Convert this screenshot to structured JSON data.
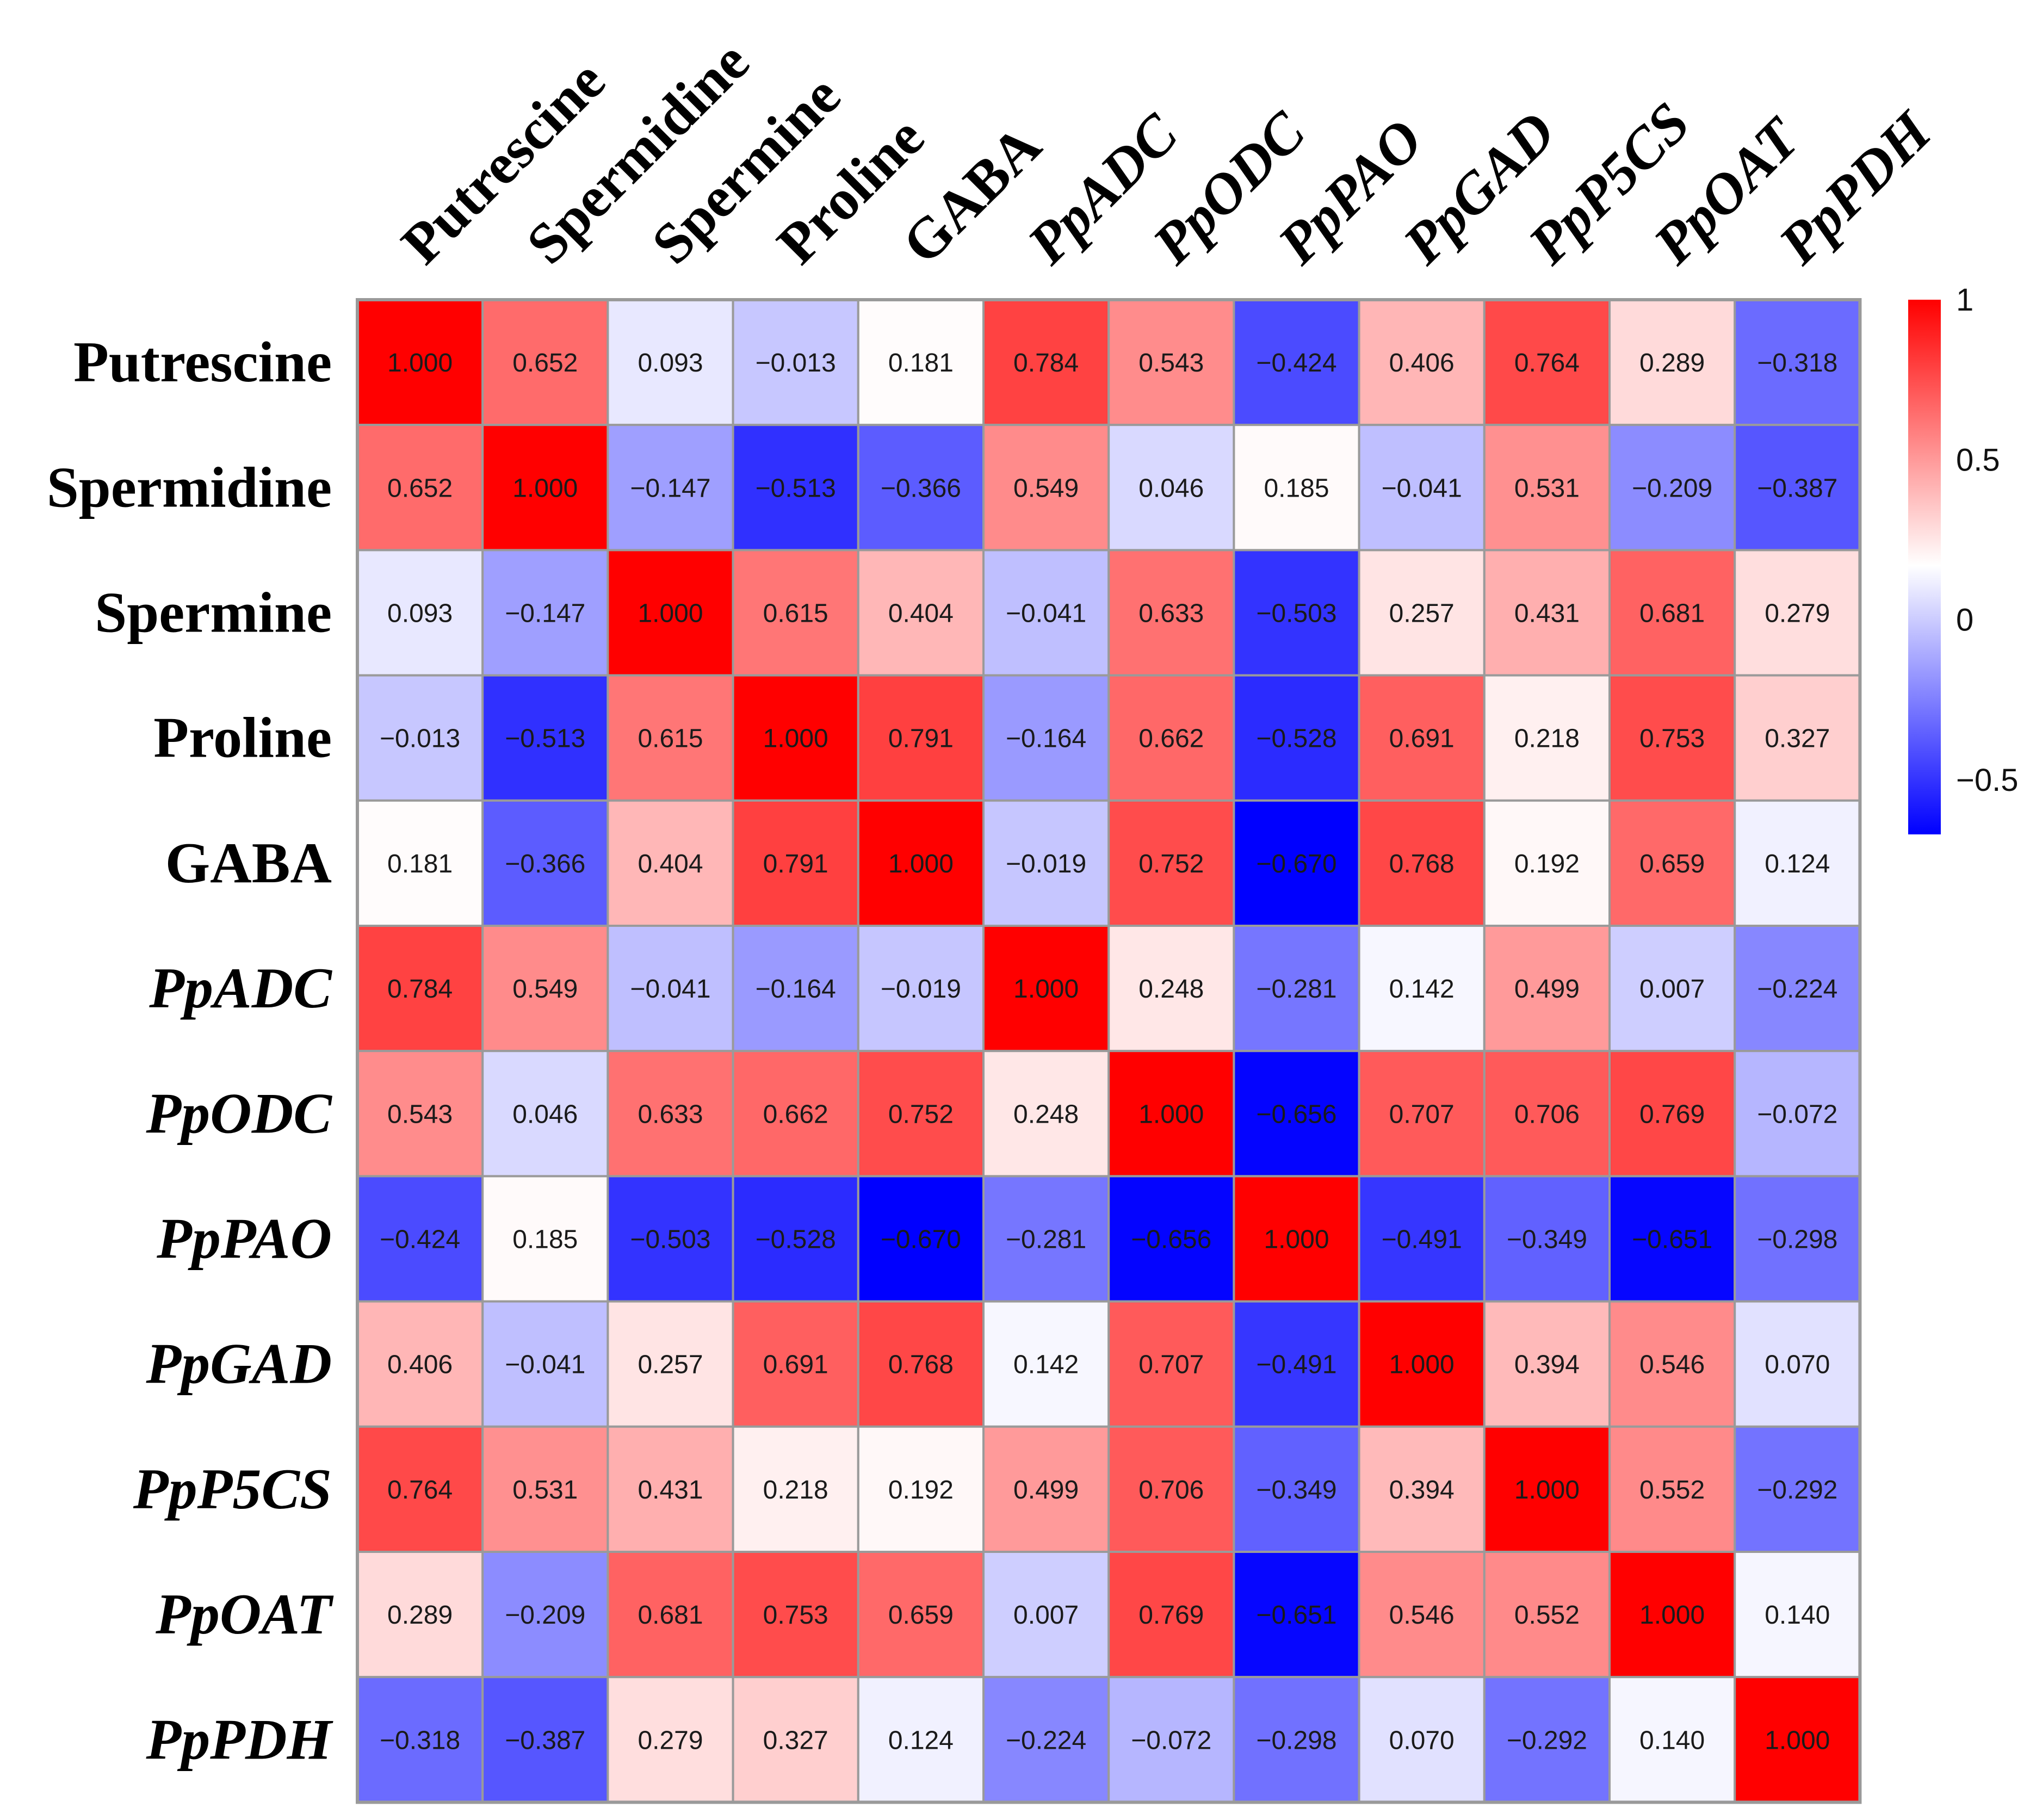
{
  "chart_data": {
    "type": "heatmap",
    "title": "",
    "labels": [
      {
        "text": "Putrescine",
        "italic": false
      },
      {
        "text": "Spermidine",
        "italic": false
      },
      {
        "text": "Spermine",
        "italic": false
      },
      {
        "text": "Proline",
        "italic": false
      },
      {
        "text": "GABA",
        "italic": false
      },
      {
        "text": "PpADC",
        "italic": true
      },
      {
        "text": "PpODC",
        "italic": true
      },
      {
        "text": "PpPAO",
        "italic": true
      },
      {
        "text": "PpGAD",
        "italic": true
      },
      {
        "text": "PpP5CS",
        "italic": true
      },
      {
        "text": "PpOAT",
        "italic": true
      },
      {
        "text": "PpPDH",
        "italic": true
      }
    ],
    "matrix": [
      [
        "1.000",
        "0.652",
        "0.093",
        "−0.013",
        "0.181",
        "0.784",
        "0.543",
        "−0.424",
        "0.406",
        "0.764",
        "0.289",
        "−0.318"
      ],
      [
        "0.652",
        "1.000",
        "−0.147",
        "−0.513",
        "−0.366",
        "0.549",
        "0.046",
        "0.185",
        "−0.041",
        "0.531",
        "−0.209",
        "−0.387"
      ],
      [
        "0.093",
        "−0.147",
        "1.000",
        "0.615",
        "0.404",
        "−0.041",
        "0.633",
        "−0.503",
        "0.257",
        "0.431",
        "0.681",
        "0.279"
      ],
      [
        "−0.013",
        "−0.513",
        "0.615",
        "1.000",
        "0.791",
        "−0.164",
        "0.662",
        "−0.528",
        "0.691",
        "0.218",
        "0.753",
        "0.327"
      ],
      [
        "0.181",
        "−0.366",
        "0.404",
        "0.791",
        "1.000",
        "−0.019",
        "0.752",
        "−0.670",
        "0.768",
        "0.192",
        "0.659",
        "0.124"
      ],
      [
        "0.784",
        "0.549",
        "−0.041",
        "−0.164",
        "−0.019",
        "1.000",
        "0.248",
        "−0.281",
        "0.142",
        "0.499",
        "0.007",
        "−0.224"
      ],
      [
        "0.543",
        "0.046",
        "0.633",
        "0.662",
        "0.752",
        "0.248",
        "1.000",
        "−0.656",
        "0.707",
        "0.706",
        "0.769",
        "−0.072"
      ],
      [
        "−0.424",
        "0.185",
        "−0.503",
        "−0.528",
        "−0.670",
        "−0.281",
        "−0.656",
        "1.000",
        "−0.491",
        "−0.349",
        "−0.651",
        "−0.298"
      ],
      [
        "0.406",
        "−0.041",
        "0.257",
        "0.691",
        "0.768",
        "0.142",
        "0.707",
        "−0.491",
        "1.000",
        "0.394",
        "0.546",
        "0.070"
      ],
      [
        "0.764",
        "0.531",
        "0.431",
        "0.218",
        "0.192",
        "0.499",
        "0.706",
        "−0.349",
        "0.394",
        "1.000",
        "0.552",
        "−0.292"
      ],
      [
        "0.289",
        "−0.209",
        "0.681",
        "0.753",
        "0.659",
        "0.007",
        "0.769",
        "−0.651",
        "0.546",
        "0.552",
        "1.000",
        "0.140"
      ],
      [
        "−0.318",
        "−0.387",
        "0.279",
        "0.327",
        "0.124",
        "−0.224",
        "−0.072",
        "−0.298",
        "0.070",
        "−0.292",
        "0.140",
        "1.000"
      ]
    ],
    "color_scale": {
      "min": -0.67,
      "mid": 0.17,
      "max": 1.0,
      "low_color": "#0000ff",
      "mid_color": "#ffffff",
      "high_color": "#ff0000",
      "ticks": [
        {
          "value": 1.0,
          "label": "1"
        },
        {
          "value": 0.5,
          "label": "0.5"
        },
        {
          "value": 0.0,
          "label": "0"
        },
        {
          "value": -0.5,
          "label": "−0.5"
        }
      ]
    },
    "legend_position": "right",
    "grid_color": "#9a9a9a"
  }
}
